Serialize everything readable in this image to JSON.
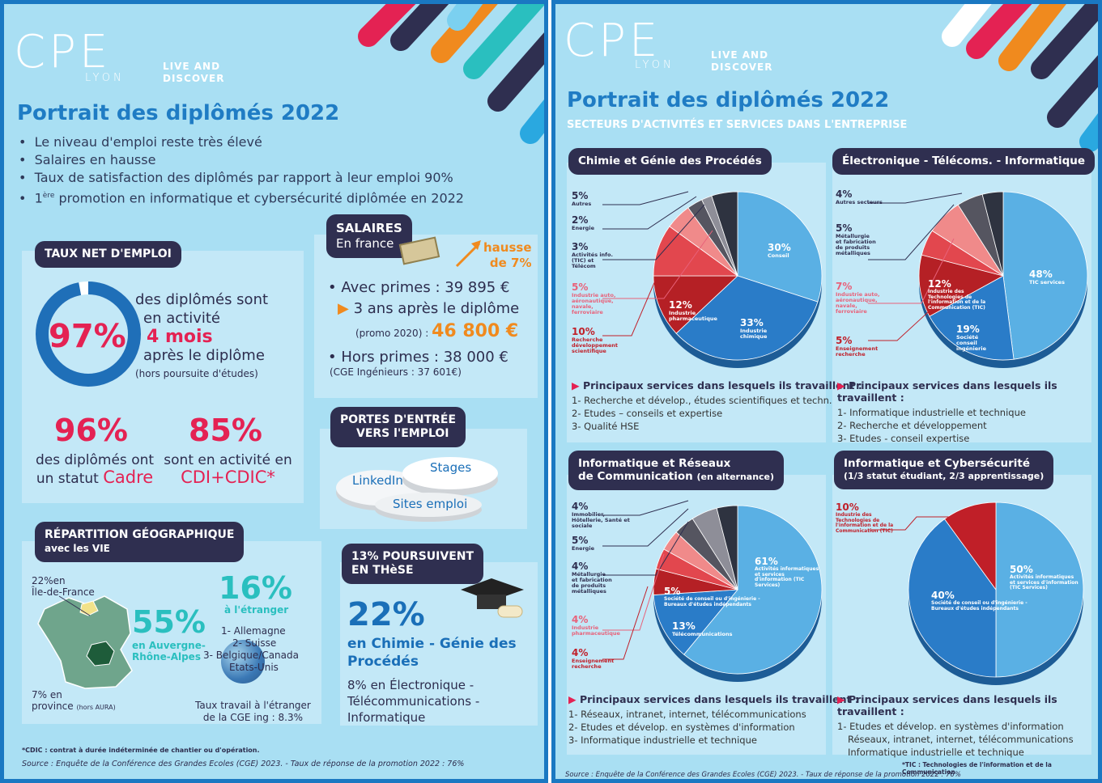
{
  "left": {
    "logo": {
      "mark": "CPE",
      "sub": "LYON",
      "tagline1": "LIVE AND",
      "tagline2": "DISCOVER"
    },
    "title": "Portrait des diplômés 2022",
    "bullets": [
      "Le niveau d'emploi reste très élevé",
      "Salaires en hausse",
      "Taux de satisfaction des diplômés par rapport à leur emploi 90%"
    ],
    "bullet4_pre": "1",
    "bullet4_sup": "ère",
    "bullet4_post": " promotion en informatique et cybersécurité diplômée en 2022",
    "emploi": {
      "tag": "TAUX NET D'EMPLOI",
      "pct": "97%",
      "ring_value": 0.97,
      "line1": "des diplômés sont",
      "line2": "en activité",
      "line3": "4 mois",
      "line4": "après le diplôme",
      "line5": "(hors poursuite d'études)",
      "stat1_pct": "96%",
      "stat1_l1": "des diplômés ont",
      "stat1_l2": "un statut ",
      "stat1_hl": "Cadre",
      "stat2_pct": "85%",
      "stat2_l1": "sont en activité en",
      "stat2_hl": "CDI+CDIC*"
    },
    "salaires": {
      "tag1": "SALAIRES",
      "tag2": "En france",
      "hausse1": "hausse",
      "hausse2": "de 7%",
      "l1": "• Avec primes : 39 895 €",
      "l2": "3 ans après le diplôme",
      "l3": "(promo 2020) :",
      "l3b": "46 800 €",
      "l4": "• Hors primes : 38 000 €",
      "l5": "(CGE Ingénieurs : 37 601€)"
    },
    "portes": {
      "tag1": "PORTES D'ENTRÉE",
      "tag2": "VERS l'EMPLOI",
      "items": [
        "LinkedIn",
        "Stages",
        "Sites emploi"
      ]
    },
    "geo": {
      "tag1": "RÉPARTITION GÉOGRAPHIQUE",
      "tag2": "avec les VIE",
      "idf1": "22%en",
      "idf2": "Île-de-France",
      "aura_pct": "55%",
      "aura1": "en Auvergne-",
      "aura2": "Rhône-Alpes",
      "prov1": "7% en",
      "prov2": "province",
      "prov3": "(hors AURA)",
      "etr_pct": "16%",
      "etr_lbl": "à l'étranger",
      "countries": [
        "1- Allemagne",
        "2- Suisse",
        "3- Belgique/Canada",
        "Etats-Unis"
      ],
      "taux1": "Taux travail à l'étranger",
      "taux2": "de la CGE ing : 8.3%"
    },
    "these": {
      "tag1": "13% POURSUIVENT",
      "tag2": "EN THèSE",
      "pct": "22%",
      "l1": "en Chimie - Génie des",
      "l2": "Procédés",
      "l3": "8% en Électronique -",
      "l4": "Télécommunications -",
      "l5": "Informatique"
    },
    "footnote": "*CDIC : contrat à durée indéterminée de chantier ou d'opération.",
    "source": "Source :  Enquête de la Conférence des Grandes Ecoles (CGE) 2023.  -  Taux de réponse de la promotion 2022 : 76%"
  },
  "right": {
    "logo": {
      "mark": "CPE",
      "sub": "LYON",
      "tagline1": "LIVE AND",
      "tagline2": "DISCOVER"
    },
    "title": "Portrait des diplômés 2022",
    "subtitle": "SECTEURS D'ACTIVITÉS ET SERVICES DANS L'ENTREPRISE",
    "service_title": "Principaux services dans lesquels ils travaillent :",
    "q1": {
      "tag": "Chimie et Génie des Procédés",
      "labels": [
        {
          "pct": "5%",
          "txt": "Autres"
        },
        {
          "pct": "2%",
          "txt": "Energie"
        },
        {
          "pct": "3%",
          "txt": "Activités info. (TIC) et Télécom"
        },
        {
          "pct": "5%",
          "txt": "Industrie auto, aéronautique, navale, ferroviaire"
        },
        {
          "pct": "10%",
          "txt": "Recherche développement scientifique"
        },
        {
          "pct": "12%",
          "txt": "Industrie pharmaceutique"
        },
        {
          "pct": "33%",
          "txt": "Industrie chimique"
        },
        {
          "pct": "30%",
          "txt": "Conseil"
        }
      ],
      "services": [
        "1- Recherche et dévelop., études scientifiques et techn.",
        "2- Etudes – conseils et expertise",
        "3- Qualité HSE"
      ],
      "chart_data": {
        "type": "pie",
        "categories": [
          "Conseil",
          "Industrie chimique",
          "Industrie pharmaceutique",
          "Recherche développement scientifique",
          "Industrie auto, aéronautique, navale, ferroviaire",
          "Activités info. (TIC) et Télécom",
          "Energie",
          "Autres"
        ],
        "values": [
          30,
          33,
          12,
          10,
          5,
          3,
          2,
          5
        ]
      }
    },
    "q2": {
      "tag": "Électronique - Télécoms. - Informatique",
      "labels": [
        {
          "pct": "4%",
          "txt": "Autres secteurs"
        },
        {
          "pct": "5%",
          "txt": "Métallurgie et fabrication de produits métalliques"
        },
        {
          "pct": "7%",
          "txt": "Industrie auto, aéronautique, navale, ferroviaire"
        },
        {
          "pct": "5%",
          "txt": "Enseignement recherche"
        },
        {
          "pct": "12%",
          "txt": "Industrie des Technologies de l'information et de la Communication (TIC)"
        },
        {
          "pct": "19%",
          "txt": "Société conseil ingénierie"
        },
        {
          "pct": "48%",
          "txt": "TIC services"
        }
      ],
      "services": [
        "1- Informatique industrielle et technique",
        "2- Recherche et développement",
        "3- Etudes - conseil expertise"
      ],
      "chart_data": {
        "type": "pie",
        "categories": [
          "TIC services",
          "Société conseil ingénierie",
          "Industrie des Technologies de l'information et de la Communication (TIC)",
          "Enseignement recherche",
          "Industrie auto, aéronautique, navale, ferroviaire",
          "Métallurgie et fabrication de produits métalliques",
          "Autres secteurs"
        ],
        "values": [
          48,
          19,
          12,
          5,
          7,
          5,
          4
        ]
      }
    },
    "q3": {
      "tag1": "Informatique et Réseaux",
      "tag2": "de Communication",
      "tag3": "(en alternance)",
      "labels": [
        {
          "pct": "4%",
          "txt": "Immobilier, Hôtellerie, Santé et sociale"
        },
        {
          "pct": "5%",
          "txt": "Energie"
        },
        {
          "pct": "4%",
          "txt": "Métallurgie et fabrication de produits métalliques"
        },
        {
          "pct": "4%",
          "txt": "Industrie pharmaceutique"
        },
        {
          "pct": "4%",
          "txt": "Enseignement recherche"
        },
        {
          "pct": "5%",
          "txt": "Société de conseil ou d'ingénierie - Bureaux d'études indépendants"
        },
        {
          "pct": "13%",
          "txt": "Télécommunications"
        },
        {
          "pct": "61%",
          "txt": "Activités informatiques et services d'information (TIC Services)"
        }
      ],
      "services": [
        "1- Réseaux, intranet, internet, télécommunications",
        "2- Etudes et dévelop. en systèmes d'information",
        "3- Informatique industrielle et technique"
      ],
      "chart_data": {
        "type": "pie",
        "categories": [
          "Activités informatiques et services d'information (TIC Services)",
          "Télécommunications",
          "Société de conseil ou d'ingénierie - Bureaux d'études indépendants",
          "Enseignement recherche",
          "Industrie pharmaceutique",
          "Métallurgie et fabrication de produits métalliques",
          "Energie",
          "Immobilier, Hôtellerie, Santé et sociale"
        ],
        "values": [
          61,
          13,
          5,
          4,
          4,
          4,
          5,
          4
        ]
      }
    },
    "q4": {
      "tag1": "Informatique et Cybersécurité",
      "tag2": "(1/3 statut étudiant, 2/3 apprentissage)",
      "labels": [
        {
          "pct": "10%",
          "txt": "Industrie des Technologies de l'information et de la Communication (TIC)"
        },
        {
          "pct": "40%",
          "txt": "Société de conseil ou d'ingénierie - Bureaux d'études indépendants"
        },
        {
          "pct": "50%",
          "txt": "Activités informatiques et services d'information (TIC Services)"
        }
      ],
      "services": [
        "1- Etudes et dévelop. en systèmes d'information",
        "Réseaux, intranet, internet, télécommunications",
        "Informatique industrielle et technique"
      ],
      "chart_data": {
        "type": "pie",
        "categories": [
          "Activités informatiques et services d'information (TIC Services)",
          "Société de conseil ou d'ingénierie - Bureaux d'études indépendants",
          "Industrie des Technologies de l'information et de la Communication (TIC)"
        ],
        "values": [
          50,
          40,
          10
        ]
      }
    },
    "footnote": "*TIC : Technologies de l'information et de la Communication",
    "source": "Source : Enquête de la Conférence des Grandes Ecoles (CGE) 2023. - Taux de réponse de la promotion 2022 : 76%"
  },
  "colors": {
    "blue": "#1f7cc4",
    "pink": "#e42253",
    "orange": "#f08a1e",
    "teal": "#2abfbf",
    "dark": "#2f2f50",
    "bg": "#a9dff3"
  }
}
